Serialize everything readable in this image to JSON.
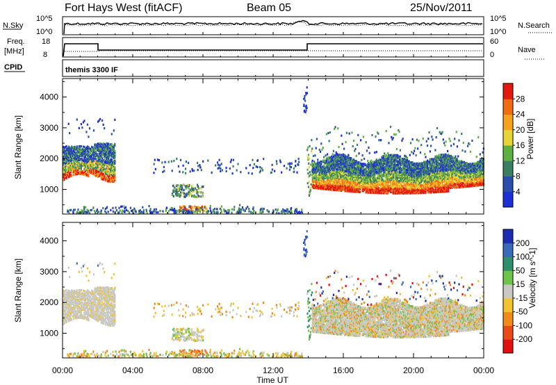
{
  "header": {
    "station": "Fort Hays West (fitACF)",
    "beam": "Beam 05",
    "date": "25/Nov/2011"
  },
  "top_panels": {
    "nsky_label": "N.Sky",
    "nsky_ticks": [
      "10^5",
      "10^0"
    ],
    "nsearch_label": "N.Search",
    "nsearch_ticks": [
      "10^5",
      "10^0"
    ],
    "freq_label": "Freq.",
    "freq_unit": "[MHz]",
    "freq_ticks": [
      "18",
      "8"
    ],
    "nave_label": "Nave",
    "nave_ticks": [
      "60",
      "0"
    ],
    "cpid_label": "CPID",
    "cpid_text": "themis 3300 IF"
  },
  "chart_data": [
    {
      "type": "heatmap",
      "panel": "power",
      "ylabel": "Slant Range [km]",
      "y_ticks": [
        1000,
        2000,
        3000,
        4000
      ],
      "ylim": [
        200,
        4600
      ],
      "xlim": [
        0,
        24
      ],
      "colorbar_label": "Power [dB]",
      "colorbar_ticks": [
        "4",
        "8",
        "12",
        "16",
        "20",
        "24",
        "28"
      ],
      "colors": [
        "#1f2fd6",
        "#2b4fa8",
        "#3a7f62",
        "#5fb043",
        "#e6d43a",
        "#f5a21f",
        "#f06c12",
        "#e11a10"
      ]
    },
    {
      "type": "heatmap",
      "panel": "velocity",
      "ylabel": "Slant Range [km]",
      "y_ticks": [
        1000,
        2000,
        3000,
        4000
      ],
      "ylim": [
        200,
        4600
      ],
      "xlim": [
        0,
        24
      ],
      "xlabel": "Time UT",
      "x_ticks": [
        "00:00",
        "04:00",
        "08:00",
        "12:00",
        "16:00",
        "20:00",
        "00:00"
      ],
      "colorbar_label": "Velocity [m s^-1]",
      "colorbar_ticks": [
        "200",
        "100",
        "50",
        "15",
        "-15",
        "-50",
        "-100",
        "-200"
      ],
      "colors": [
        "#1e2db0",
        "#3a6ab8",
        "#2f8f6a",
        "#6fc24a",
        "#c8c8c4",
        "#f2c431",
        "#f08a1a",
        "#e84a1a",
        "#e01010"
      ]
    }
  ]
}
